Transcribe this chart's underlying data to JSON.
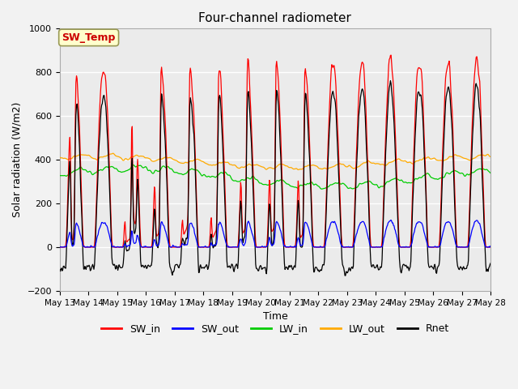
{
  "title": "Four-channel radiometer",
  "xlabel": "Time",
  "ylabel": "Solar radiation (W/m2)",
  "ylim": [
    -200,
    1000
  ],
  "background_color": "#ebebeb",
  "annotation_text": "SW_Temp",
  "annotation_color": "#cc0000",
  "annotation_bg": "#ffffcc",
  "annotation_border": "#999955",
  "legend_items": [
    {
      "label": "SW_in",
      "color": "#ff0000"
    },
    {
      "label": "SW_out",
      "color": "#0000ff"
    },
    {
      "label": "LW_in",
      "color": "#00cc00"
    },
    {
      "label": "LW_out",
      "color": "#ffaa00"
    },
    {
      "label": "Rnet",
      "color": "#000000"
    }
  ],
  "num_days": 15,
  "start_day": 13,
  "yticks": [
    -200,
    0,
    200,
    400,
    600,
    800,
    1000
  ],
  "grid_color": "#ffffff",
  "figsize": [
    6.4,
    4.8
  ],
  "dpi": 100
}
